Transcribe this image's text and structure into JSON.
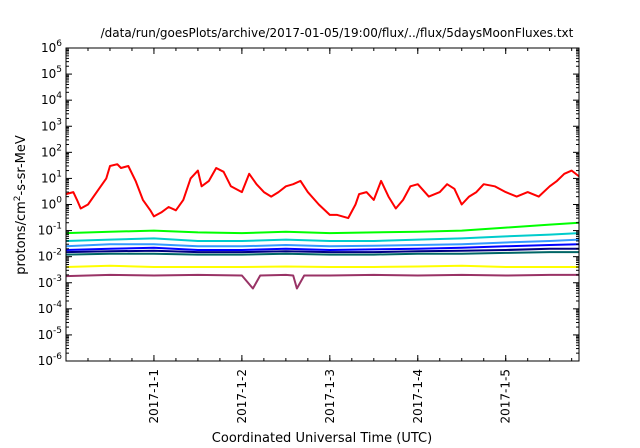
{
  "chart_data": {
    "type": "line",
    "title": "/data/run/goesPlots/archive/2017-01-05/19:00/flux/../flux/5daysMoonFluxes.txt",
    "xlabel": "Coordinated Universal Time (UTC)",
    "ylabel": {
      "prefix": "protons/cm",
      "superscript": "2",
      "suffix": "-s-sr-MeV"
    },
    "yscale": "log",
    "ylim": [
      1e-06,
      1000000.0
    ],
    "y_tick_exponents": [
      -6,
      -5,
      -4,
      -3,
      -2,
      -1,
      0,
      1,
      2,
      3,
      4,
      5,
      6
    ],
    "y_tick_base": "10",
    "xlim": [
      "2016-12-31T00:00",
      "2017-01-05T20:00"
    ],
    "x_ticks": [
      {
        "date": "2017-01-01T00:00",
        "label": "2017-1-1"
      },
      {
        "date": "2017-01-02T00:00",
        "label": "2017-1-2"
      },
      {
        "date": "2017-01-03T00:00",
        "label": "2017-1-3"
      },
      {
        "date": "2017-01-04T00:00",
        "label": "2017-1-4"
      },
      {
        "date": "2017-01-05T00:00",
        "label": "2017-1-5"
      }
    ],
    "grid": false,
    "legend": "none",
    "series": [
      {
        "color": "#ff0000",
        "x": [
          "2016-12-31T00:00",
          "2016-12-31T02:00",
          "2016-12-31T03:00",
          "2016-12-31T04:00",
          "2016-12-31T06:00",
          "2016-12-31T09:00",
          "2016-12-31T11:00",
          "2016-12-31T12:00",
          "2016-12-31T14:00",
          "2016-12-31T15:00",
          "2016-12-31T17:00",
          "2016-12-31T19:00",
          "2016-12-31T21:00",
          "2016-12-31T23:00",
          "2017-01-01T00:00",
          "2017-01-01T02:00",
          "2017-01-01T04:00",
          "2017-01-01T06:00",
          "2017-01-01T08:00",
          "2017-01-01T10:00",
          "2017-01-01T12:00",
          "2017-01-01T13:00",
          "2017-01-01T15:00",
          "2017-01-01T17:00",
          "2017-01-01T19:00",
          "2017-01-01T21:00",
          "2017-01-02T00:00",
          "2017-01-02T02:00",
          "2017-01-02T04:00",
          "2017-01-02T06:00",
          "2017-01-02T08:00",
          "2017-01-02T10:00",
          "2017-01-02T12:00",
          "2017-01-02T14:00",
          "2017-01-02T16:00",
          "2017-01-02T18:00",
          "2017-01-02T21:00",
          "2017-01-03T00:00",
          "2017-01-03T02:00",
          "2017-01-03T05:00",
          "2017-01-03T07:00",
          "2017-01-03T08:00",
          "2017-01-03T10:00",
          "2017-01-03T12:00",
          "2017-01-03T14:00",
          "2017-01-03T16:00",
          "2017-01-03T18:00",
          "2017-01-03T20:00",
          "2017-01-03T22:00",
          "2017-01-04T00:00",
          "2017-01-04T03:00",
          "2017-01-04T06:00",
          "2017-01-04T08:00",
          "2017-01-04T10:00",
          "2017-01-04T12:00",
          "2017-01-04T14:00",
          "2017-01-04T16:00",
          "2017-01-04T18:00",
          "2017-01-04T21:00",
          "2017-01-05T00:00",
          "2017-01-05T03:00",
          "2017-01-05T06:00",
          "2017-01-05T09:00",
          "2017-01-05T12:00",
          "2017-01-05T14:00",
          "2017-01-05T16:00",
          "2017-01-05T18:00",
          "2017-01-05T20:00"
        ],
        "y": [
          2.5,
          3,
          1.5,
          0.7,
          1,
          4,
          10,
          30,
          35,
          25,
          30,
          8,
          1.5,
          0.6,
          0.35,
          0.5,
          0.8,
          0.6,
          1.5,
          10,
          20,
          5,
          8,
          25,
          18,
          5,
          3,
          15,
          6,
          3,
          2,
          3,
          5,
          6,
          8,
          3,
          1,
          0.4,
          0.4,
          0.3,
          1,
          2.5,
          3,
          1.5,
          8,
          2,
          0.7,
          1.5,
          5,
          6,
          2,
          3,
          6,
          4,
          1,
          2,
          3,
          6,
          5,
          3,
          2,
          3,
          2,
          5,
          8,
          15,
          20,
          12
        ]
      },
      {
        "color": "#00ff00",
        "x": [
          "2016-12-31T00:00",
          "2016-12-31T12:00",
          "2017-01-01T00:00",
          "2017-01-01T12:00",
          "2017-01-02T00:00",
          "2017-01-02T12:00",
          "2017-01-03T00:00",
          "2017-01-03T12:00",
          "2017-01-04T00:00",
          "2017-01-04T12:00",
          "2017-01-05T00:00",
          "2017-01-05T12:00",
          "2017-01-05T20:00"
        ],
        "y": [
          0.08,
          0.09,
          0.1,
          0.085,
          0.08,
          0.09,
          0.08,
          0.085,
          0.09,
          0.1,
          0.13,
          0.17,
          0.2
        ]
      },
      {
        "color": "#00cccc",
        "x": [
          "2016-12-31T00:00",
          "2016-12-31T12:00",
          "2017-01-01T00:00",
          "2017-01-01T12:00",
          "2017-01-02T00:00",
          "2017-01-02T12:00",
          "2017-01-03T00:00",
          "2017-01-03T12:00",
          "2017-01-04T00:00",
          "2017-01-04T12:00",
          "2017-01-05T00:00",
          "2017-01-05T12:00",
          "2017-01-05T20:00"
        ],
        "y": [
          0.04,
          0.045,
          0.05,
          0.04,
          0.04,
          0.045,
          0.04,
          0.04,
          0.045,
          0.05,
          0.06,
          0.07,
          0.08
        ]
      },
      {
        "color": "#3399ff",
        "x": [
          "2016-12-31T00:00",
          "2016-12-31T12:00",
          "2017-01-01T00:00",
          "2017-01-01T12:00",
          "2017-01-02T00:00",
          "2017-01-02T12:00",
          "2017-01-03T00:00",
          "2017-01-03T12:00",
          "2017-01-04T00:00",
          "2017-01-04T12:00",
          "2017-01-05T00:00",
          "2017-01-05T12:00",
          "2017-01-05T20:00"
        ],
        "y": [
          0.025,
          0.03,
          0.03,
          0.025,
          0.025,
          0.028,
          0.025,
          0.026,
          0.028,
          0.03,
          0.035,
          0.04,
          0.045
        ]
      },
      {
        "color": "#0000ff",
        "x": [
          "2016-12-31T00:00",
          "2016-12-31T12:00",
          "2017-01-01T00:00",
          "2017-01-01T12:00",
          "2017-01-02T00:00",
          "2017-01-02T12:00",
          "2017-01-03T00:00",
          "2017-01-03T12:00",
          "2017-01-04T00:00",
          "2017-01-04T12:00",
          "2017-01-05T00:00",
          "2017-01-05T12:00",
          "2017-01-05T20:00"
        ],
        "y": [
          0.018,
          0.02,
          0.022,
          0.018,
          0.018,
          0.02,
          0.018,
          0.019,
          0.02,
          0.022,
          0.025,
          0.028,
          0.03
        ]
      },
      {
        "color": "#006666",
        "x": [
          "2016-12-31T00:00",
          "2016-12-31T12:00",
          "2017-01-01T00:00",
          "2017-01-01T12:00",
          "2017-01-02T00:00",
          "2017-01-02T12:00",
          "2017-01-03T00:00",
          "2017-01-03T12:00",
          "2017-01-04T00:00",
          "2017-01-04T12:00",
          "2017-01-05T00:00",
          "2017-01-05T12:00",
          "2017-01-05T20:00"
        ],
        "y": [
          0.012,
          0.013,
          0.013,
          0.012,
          0.012,
          0.013,
          0.012,
          0.012,
          0.013,
          0.013,
          0.014,
          0.015,
          0.015
        ]
      },
      {
        "color": "#000080",
        "x": [
          "2016-12-31T00:00",
          "2016-12-31T12:00",
          "2017-01-01T00:00",
          "2017-01-01T12:00",
          "2017-01-02T00:00",
          "2017-01-02T12:00",
          "2017-01-03T00:00",
          "2017-01-03T12:00",
          "2017-01-04T00:00",
          "2017-01-04T12:00",
          "2017-01-05T00:00",
          "2017-01-05T12:00",
          "2017-01-05T20:00"
        ],
        "y": [
          0.015,
          0.016,
          0.017,
          0.015,
          0.015,
          0.016,
          0.015,
          0.015,
          0.016,
          0.017,
          0.018,
          0.02,
          0.02
        ]
      },
      {
        "color": "#ffff00",
        "x": [
          "2016-12-31T00:00",
          "2016-12-31T12:00",
          "2017-01-01T00:00",
          "2017-01-01T12:00",
          "2017-01-02T00:00",
          "2017-01-02T12:00",
          "2017-01-03T00:00",
          "2017-01-03T12:00",
          "2017-01-04T00:00",
          "2017-01-04T12:00",
          "2017-01-05T00:00",
          "2017-01-05T12:00",
          "2017-01-05T20:00"
        ],
        "y": [
          0.004,
          0.0045,
          0.004,
          0.004,
          0.004,
          0.0042,
          0.004,
          0.004,
          0.0042,
          0.0045,
          0.004,
          0.004,
          0.004
        ]
      },
      {
        "color": "#993366",
        "x": [
          "2016-12-31T00:00",
          "2016-12-31T12:00",
          "2017-01-01T00:00",
          "2017-01-01T12:00",
          "2017-01-02T00:00",
          "2017-01-02T03:00",
          "2017-01-02T05:00",
          "2017-01-02T12:00",
          "2017-01-02T14:00",
          "2017-01-02T15:00",
          "2017-01-02T17:00",
          "2017-01-03T00:00",
          "2017-01-03T12:00",
          "2017-01-04T00:00",
          "2017-01-04T12:00",
          "2017-01-05T00:00",
          "2017-01-05T12:00",
          "2017-01-05T20:00"
        ],
        "y": [
          0.0018,
          0.002,
          0.0019,
          0.002,
          0.0019,
          0.0006,
          0.0019,
          0.002,
          0.0019,
          0.0006,
          0.0019,
          0.0019,
          0.002,
          0.0019,
          0.002,
          0.0019,
          0.002,
          0.002
        ]
      }
    ]
  }
}
